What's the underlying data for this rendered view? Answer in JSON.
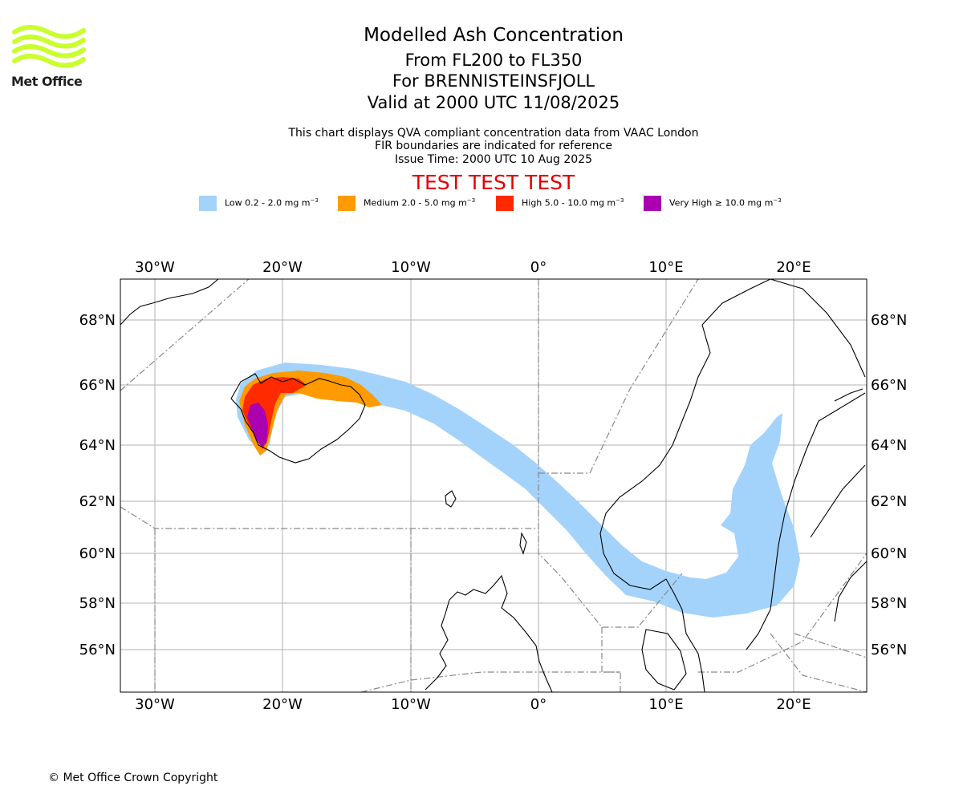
{
  "logo": {
    "name": "Met Office"
  },
  "title": "Modelled Ash Concentration",
  "subtitle_lines": [
    "From FL200 to FL350",
    "For BRENNISTEINSFJOLL",
    "Valid at 2000 UTC 11/08/2025"
  ],
  "notes": [
    "This chart displays QVA compliant concentration data from VAAC London",
    "FIR boundaries are indicated for reference",
    "Issue Time: 2000 UTC 10 Aug 2025"
  ],
  "test_banner": "TEST TEST TEST",
  "legend": [
    {
      "label": "Low 0.2 - 2.0 mg m",
      "unit_exp": "−3",
      "color": "#a3d3fb"
    },
    {
      "label": "Medium 2.0 - 5.0 mg m",
      "unit_exp": "−3",
      "color": "#ff9a00"
    },
    {
      "label": "High 5.0 - 10.0 mg m",
      "unit_exp": "−3",
      "color": "#ff2a00"
    },
    {
      "label": "Very High ≥ 10.0 mg m",
      "unit_exp": "−3",
      "color": "#aa00b0"
    }
  ],
  "map": {
    "lon_labels": [
      "30°W",
      "20°W",
      "10°W",
      "0°",
      "10°E",
      "20°E"
    ],
    "lat_labels": [
      "68°N",
      "66°N",
      "64°N",
      "62°N",
      "60°N",
      "58°N",
      "56°N"
    ],
    "grid_color": "#b0b0b0",
    "fir_color": "#888888",
    "coast_color": "#000000"
  },
  "copyright": "© Met Office Crown Copyright"
}
